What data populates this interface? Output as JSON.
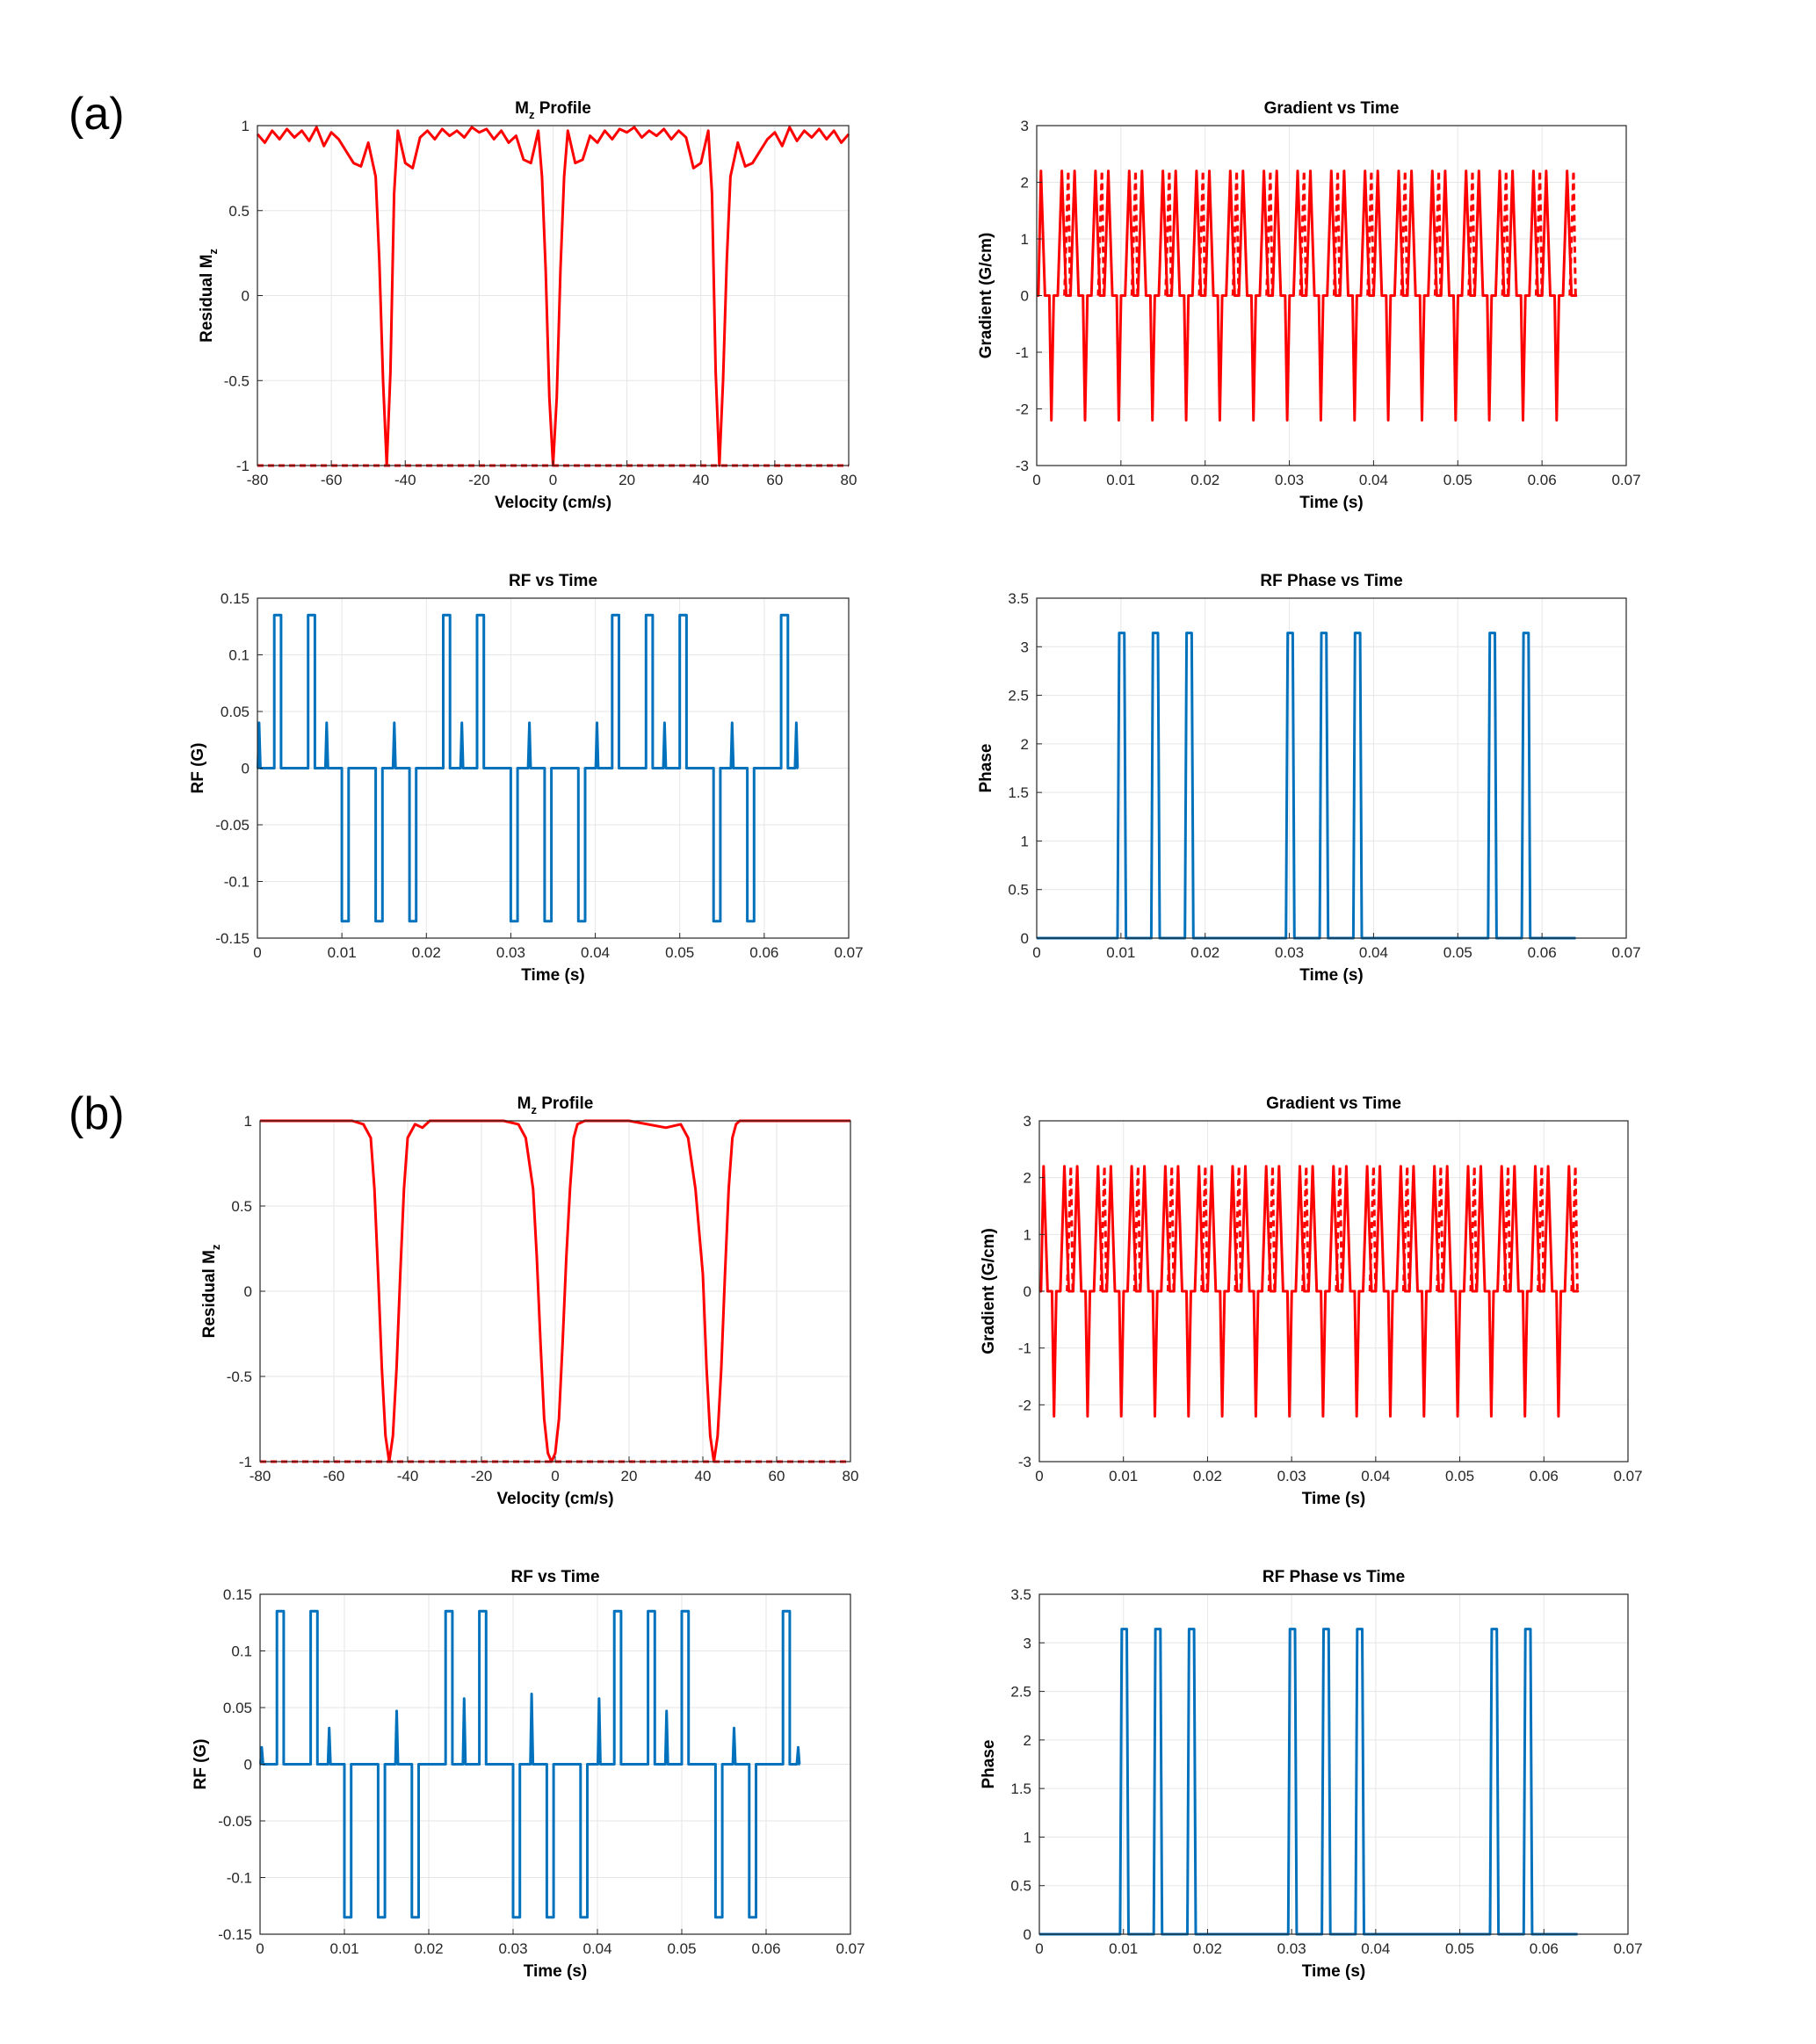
{
  "figure": {
    "panels": [
      {
        "label": "(a)"
      },
      {
        "label": "(b)"
      }
    ]
  },
  "colors": {
    "red": "#ff0000",
    "blue": "#0072bd",
    "grid": "#e6e6e6",
    "axis": "#262626"
  },
  "chart_data": [
    {
      "id": "a-mz",
      "type": "line",
      "title": "M",
      "title_sub": "z",
      "title_rest": " Profile",
      "xlabel": "Velocity (cm/s)",
      "ylabel": "Residual M",
      "ylabel_sub": "z",
      "xlim": [
        -80,
        80
      ],
      "ylim": [
        -1,
        1
      ],
      "xticks": [
        -80,
        -60,
        -40,
        -20,
        0,
        20,
        40,
        60,
        80
      ],
      "yticks": [
        -1,
        -0.5,
        0,
        0.5,
        1
      ],
      "ytick_labels": [
        "-1",
        "-0.5",
        "0",
        "0.5",
        "1"
      ],
      "series": [
        {
          "name": "Mz profile",
          "color": "#ff0000",
          "dash": false,
          "x": [
            -80,
            -78,
            -76,
            -74,
            -72,
            -70,
            -68,
            -66,
            -64,
            -62,
            -60,
            -58,
            -56,
            -54,
            -52,
            -50,
            -48,
            -47,
            -46,
            -45,
            -44,
            -43,
            -42,
            -40,
            -38,
            -36,
            -34,
            -32,
            -30,
            -28,
            -26,
            -24,
            -22,
            -20,
            -18,
            -16,
            -14,
            -12,
            -10,
            -8,
            -6,
            -4,
            -3,
            -2,
            -1,
            0,
            1,
            2,
            3,
            4,
            6,
            8,
            10,
            12,
            14,
            16,
            18,
            20,
            22,
            24,
            26,
            28,
            30,
            32,
            34,
            36,
            38,
            40,
            42,
            43,
            44,
            45,
            46,
            47,
            48,
            50,
            52,
            54,
            56,
            58,
            60,
            62,
            64,
            66,
            68,
            70,
            72,
            74,
            76,
            78,
            80
          ],
          "y": [
            0.95,
            0.9,
            0.97,
            0.92,
            0.98,
            0.93,
            0.97,
            0.91,
            0.99,
            0.88,
            0.96,
            0.92,
            0.85,
            0.78,
            0.76,
            0.9,
            0.7,
            0.2,
            -0.5,
            -1.0,
            -0.45,
            0.6,
            0.97,
            0.78,
            0.75,
            0.93,
            0.97,
            0.92,
            0.98,
            0.94,
            0.97,
            0.93,
            0.99,
            0.96,
            0.98,
            0.92,
            0.97,
            0.9,
            0.94,
            0.8,
            0.78,
            0.97,
            0.7,
            0.15,
            -0.6,
            -1.0,
            -0.6,
            0.15,
            0.7,
            0.97,
            0.78,
            0.8,
            0.94,
            0.9,
            0.97,
            0.92,
            0.98,
            0.96,
            0.99,
            0.93,
            0.97,
            0.94,
            0.98,
            0.92,
            0.97,
            0.93,
            0.75,
            0.78,
            0.97,
            0.6,
            -0.45,
            -1.0,
            -0.5,
            0.2,
            0.7,
            0.9,
            0.76,
            0.78,
            0.85,
            0.92,
            0.96,
            0.88,
            0.99,
            0.91,
            0.97,
            0.93,
            0.98,
            0.92,
            0.97,
            0.9,
            0.95
          ]
        },
        {
          "name": "baseline",
          "color": "#ff0000",
          "dash": true,
          "x": [
            -80,
            80
          ],
          "y": [
            -1,
            -1
          ]
        }
      ]
    },
    {
      "id": "a-grad",
      "type": "line",
      "title": "Gradient vs Time",
      "xlabel": "Time (s)",
      "ylabel": "Gradient (G/cm)",
      "xlim": [
        0,
        0.07
      ],
      "ylim": [
        -3,
        3
      ],
      "xticks": [
        0,
        0.01,
        0.02,
        0.03,
        0.04,
        0.05,
        0.06,
        0.07
      ],
      "xtick_labels": [
        "0",
        "0.01",
        "0.02",
        "0.03",
        "0.04",
        "0.05",
        "0.06",
        "0.07"
      ],
      "yticks": [
        -3,
        -2,
        -1,
        0,
        1,
        2,
        3
      ],
      "ytick_labels": [
        "-3",
        "-2",
        "-1",
        "0",
        "1",
        "2",
        "3"
      ],
      "gradient": {
        "amplitude": 2.2,
        "period": 0.004,
        "start": 0.0005,
        "end": 0.0641,
        "t_max": 0.064
      },
      "series": [
        {
          "name": "gradient",
          "color": "#ff0000",
          "dash": false
        },
        {
          "name": "gradient (dashed)",
          "color": "#ff0000",
          "dash": true
        }
      ]
    },
    {
      "id": "a-rf",
      "type": "line",
      "title": "RF vs Time",
      "xlabel": "Time (s)",
      "ylabel": "RF (G)",
      "xlim": [
        0,
        0.07
      ],
      "ylim": [
        -0.15,
        0.15
      ],
      "xticks": [
        0,
        0.01,
        0.02,
        0.03,
        0.04,
        0.05,
        0.06,
        0.07
      ],
      "xtick_labels": [
        "0",
        "0.01",
        "0.02",
        "0.03",
        "0.04",
        "0.05",
        "0.06",
        "0.07"
      ],
      "yticks": [
        -0.15,
        -0.1,
        -0.05,
        0,
        0.05,
        0.1,
        0.15
      ],
      "ytick_labels": [
        "-0.15",
        "-0.1",
        "-0.05",
        "0",
        "0.05",
        "0.1",
        "0.15"
      ],
      "pulse_signs": [
        1,
        1,
        -1,
        -1,
        -1,
        1,
        1,
        -1,
        -1,
        -1,
        1,
        1,
        1,
        -1,
        -1,
        1
      ],
      "rf_amplitude": 0.135,
      "spike_times": [
        0.0002,
        0.0082,
        0.0162,
        0.0242,
        0.0322,
        0.0402,
        0.0482,
        0.0562,
        0.0638
      ],
      "spike_heights": [
        0.04,
        0.04,
        0.04,
        0.04,
        0.04,
        0.04,
        0.04,
        0.04,
        0.04
      ],
      "series": [
        {
          "name": "RF",
          "color": "#0072bd",
          "dash": false
        }
      ]
    },
    {
      "id": "a-phase",
      "type": "line",
      "title": "RF Phase vs Time",
      "xlabel": "Time (s)",
      "ylabel": "Phase",
      "xlim": [
        0,
        0.07
      ],
      "ylim": [
        0,
        3.5
      ],
      "xticks": [
        0,
        0.01,
        0.02,
        0.03,
        0.04,
        0.05,
        0.06,
        0.07
      ],
      "xtick_labels": [
        "0",
        "0.01",
        "0.02",
        "0.03",
        "0.04",
        "0.05",
        "0.06",
        "0.07"
      ],
      "yticks": [
        0,
        0.5,
        1,
        1.5,
        2,
        2.5,
        3,
        3.5
      ],
      "ytick_labels": [
        "0",
        "0.5",
        "1",
        "1.5",
        "2",
        "2.5",
        "3",
        "3.5"
      ],
      "phase_value": 3.14159,
      "t_max": 0.064,
      "series": [
        {
          "name": "phase",
          "color": "#0072bd",
          "dash": false
        }
      ]
    },
    {
      "id": "b-mz",
      "type": "line",
      "title": "M",
      "title_sub": "z",
      "title_rest": " Profile",
      "xlabel": "Velocity (cm/s)",
      "ylabel": "Residual M",
      "ylabel_sub": "z",
      "xlim": [
        -80,
        80
      ],
      "ylim": [
        -1,
        1
      ],
      "xticks": [
        -80,
        -60,
        -40,
        -20,
        0,
        20,
        40,
        60,
        80
      ],
      "yticks": [
        -1,
        -0.5,
        0,
        0.5,
        1
      ],
      "ytick_labels": [
        "-1",
        "-0.5",
        "0",
        "0.5",
        "1"
      ],
      "series": [
        {
          "name": "Mz profile",
          "color": "#ff0000",
          "dash": false,
          "x": [
            -80,
            -70,
            -60,
            -55,
            -52,
            -50,
            -49,
            -48,
            -47,
            -46,
            -45,
            -44,
            -43,
            -42,
            -41,
            -40,
            -38,
            -36,
            -34,
            -30,
            -20,
            -14,
            -10,
            -8,
            -6,
            -5,
            -4,
            -3,
            -2,
            -1,
            0,
            1,
            2,
            3,
            4,
            5,
            6,
            8,
            10,
            14,
            20,
            30,
            34,
            36,
            38,
            40,
            41,
            42,
            43,
            44,
            45,
            46,
            47,
            48,
            49,
            50,
            52,
            55,
            60,
            70,
            80
          ],
          "y": [
            1,
            1,
            1,
            1,
            0.98,
            0.9,
            0.6,
            0.1,
            -0.45,
            -0.85,
            -1.0,
            -0.85,
            -0.45,
            0.1,
            0.6,
            0.9,
            0.98,
            0.96,
            1,
            1,
            1,
            1,
            0.98,
            0.9,
            0.6,
            0.2,
            -0.3,
            -0.75,
            -0.95,
            -1.0,
            -0.95,
            -0.75,
            -0.3,
            0.2,
            0.6,
            0.9,
            0.98,
            1,
            1,
            1,
            1,
            0.96,
            0.98,
            0.9,
            0.6,
            0.1,
            -0.45,
            -0.85,
            -1.0,
            -0.85,
            -0.45,
            0.1,
            0.6,
            0.9,
            0.98,
            1,
            1,
            1,
            1,
            1,
            1
          ]
        },
        {
          "name": "baseline",
          "color": "#ff0000",
          "dash": true,
          "x": [
            -80,
            80
          ],
          "y": [
            -1,
            -1
          ]
        }
      ]
    },
    {
      "id": "b-grad",
      "type": "line",
      "title": "Gradient vs Time",
      "xlabel": "Time (s)",
      "ylabel": "Gradient (G/cm)",
      "xlim": [
        0,
        0.07
      ],
      "ylim": [
        -3,
        3
      ],
      "xticks": [
        0,
        0.01,
        0.02,
        0.03,
        0.04,
        0.05,
        0.06,
        0.07
      ],
      "xtick_labels": [
        "0",
        "0.01",
        "0.02",
        "0.03",
        "0.04",
        "0.05",
        "0.06",
        "0.07"
      ],
      "yticks": [
        -3,
        -2,
        -1,
        0,
        1,
        2,
        3
      ],
      "ytick_labels": [
        "-3",
        "-2",
        "-1",
        "0",
        "1",
        "2",
        "3"
      ],
      "gradient": {
        "amplitude": 2.2,
        "period": 0.004,
        "start": 0.0005,
        "end": 0.0641,
        "t_max": 0.064
      },
      "series": [
        {
          "name": "gradient",
          "color": "#ff0000",
          "dash": false
        },
        {
          "name": "gradient (dashed)",
          "color": "#ff0000",
          "dash": true
        }
      ]
    },
    {
      "id": "b-rf",
      "type": "line",
      "title": "RF vs Time",
      "xlabel": "Time (s)",
      "ylabel": "RF (G)",
      "xlim": [
        0,
        0.07
      ],
      "ylim": [
        -0.15,
        0.15
      ],
      "xticks": [
        0,
        0.01,
        0.02,
        0.03,
        0.04,
        0.05,
        0.06,
        0.07
      ],
      "xtick_labels": [
        "0",
        "0.01",
        "0.02",
        "0.03",
        "0.04",
        "0.05",
        "0.06",
        "0.07"
      ],
      "yticks": [
        -0.15,
        -0.1,
        -0.05,
        0,
        0.05,
        0.1,
        0.15
      ],
      "ytick_labels": [
        "-0.15",
        "-0.1",
        "-0.05",
        "0",
        "0.05",
        "0.1",
        "0.15"
      ],
      "pulse_signs": [
        1,
        1,
        -1,
        -1,
        -1,
        1,
        1,
        -1,
        -1,
        -1,
        1,
        1,
        1,
        -1,
        -1,
        1
      ],
      "rf_amplitude": 0.135,
      "spike_times": [
        0.0002,
        0.0082,
        0.0162,
        0.0242,
        0.0322,
        0.0402,
        0.0482,
        0.0562,
        0.0638
      ],
      "spike_heights": [
        0.015,
        0.032,
        0.047,
        0.058,
        0.062,
        0.058,
        0.047,
        0.032,
        0.015
      ],
      "series": [
        {
          "name": "RF",
          "color": "#0072bd",
          "dash": false
        }
      ]
    },
    {
      "id": "b-phase",
      "type": "line",
      "title": "RF Phase vs Time",
      "xlabel": "Time (s)",
      "ylabel": "Phase",
      "xlim": [
        0,
        0.07
      ],
      "ylim": [
        0,
        3.5
      ],
      "xticks": [
        0,
        0.01,
        0.02,
        0.03,
        0.04,
        0.05,
        0.06,
        0.07
      ],
      "xtick_labels": [
        "0",
        "0.01",
        "0.02",
        "0.03",
        "0.04",
        "0.05",
        "0.06",
        "0.07"
      ],
      "yticks": [
        0,
        0.5,
        1,
        1.5,
        2,
        2.5,
        3,
        3.5
      ],
      "ytick_labels": [
        "0",
        "0.5",
        "1",
        "1.5",
        "2",
        "2.5",
        "3",
        "3.5"
      ],
      "phase_value": 3.14159,
      "t_max": 0.064,
      "series": [
        {
          "name": "phase",
          "color": "#0072bd",
          "dash": false
        }
      ]
    }
  ]
}
